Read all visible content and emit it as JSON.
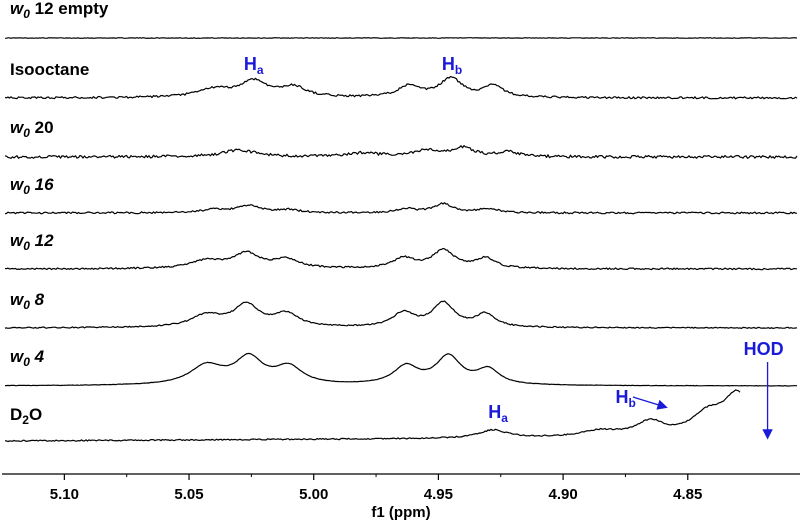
{
  "chart_data": {
    "type": "line",
    "xlabel": "f1 (ppm)",
    "xlim": [
      5.125,
      4.805
    ],
    "x_reversed": true,
    "x_ticks": [
      5.1,
      5.05,
      5.0,
      4.95,
      4.9,
      4.85
    ],
    "x_tick_labels": [
      "5.10",
      "5.05",
      "5.00",
      "4.95",
      "4.90",
      "4.85"
    ],
    "series": [
      {
        "name": "w0 12 empty",
        "label_main": "w",
        "label_sub": "0",
        "label_rest": " 12 empty",
        "label_italic": false,
        "noise": 0.3,
        "peaks": []
      },
      {
        "name": "Isooctane",
        "label_main": "Isooctane",
        "label_sub": "",
        "label_rest": "",
        "label_italic": false,
        "noise": 1.0,
        "peaks": [
          [
            5.04,
            8,
            0.012
          ],
          [
            5.024,
            16,
            0.01
          ],
          [
            5.008,
            10,
            0.009
          ],
          [
            4.962,
            11,
            0.008
          ],
          [
            4.945,
            19,
            0.008
          ],
          [
            4.928,
            12,
            0.007
          ]
        ]
      },
      {
        "name": "w0 20",
        "label_main": "w",
        "label_sub": "0",
        "label_rest": " 20",
        "label_italic": false,
        "noise": 1.4,
        "peaks": [
          [
            5.03,
            7,
            0.012
          ],
          [
            4.98,
            4,
            0.01
          ],
          [
            4.955,
            6,
            0.009
          ],
          [
            4.94,
            9,
            0.008
          ],
          [
            4.922,
            5,
            0.007
          ]
        ]
      },
      {
        "name": "w0 16",
        "label_main": "w",
        "label_sub": "0",
        "label_rest": " 16",
        "label_italic": true,
        "noise": 0.9,
        "peaks": [
          [
            5.04,
            3,
            0.01
          ],
          [
            5.026,
            7,
            0.008
          ],
          [
            5.01,
            3,
            0.008
          ],
          [
            4.963,
            4,
            0.007
          ],
          [
            4.948,
            9,
            0.007
          ],
          [
            4.93,
            4,
            0.007
          ]
        ]
      },
      {
        "name": "w0 12",
        "label_main": "w",
        "label_sub": "0",
        "label_rest": " 12",
        "label_italic": true,
        "noise": 0.8,
        "peaks": [
          [
            5.043,
            8,
            0.011
          ],
          [
            5.027,
            15,
            0.009
          ],
          [
            5.011,
            9,
            0.009
          ],
          [
            4.964,
            10,
            0.008
          ],
          [
            4.948,
            18,
            0.008
          ],
          [
            4.931,
            10,
            0.007
          ]
        ]
      },
      {
        "name": "w0 8",
        "label_main": "w",
        "label_sub": "0",
        "label_rest": " 8",
        "label_italic": true,
        "noise": 0.6,
        "peaks": [
          [
            5.043,
            12,
            0.011
          ],
          [
            5.027,
            22,
            0.009
          ],
          [
            5.011,
            13,
            0.009
          ],
          [
            4.964,
            14,
            0.008
          ],
          [
            4.948,
            24,
            0.008
          ],
          [
            4.931,
            13,
            0.007
          ]
        ]
      },
      {
        "name": "w0 4",
        "label_main": "w",
        "label_sub": "0",
        "label_rest": " 4",
        "label_italic": true,
        "noise": 0.2,
        "peaks": [
          [
            5.043,
            19,
            0.012
          ],
          [
            5.026,
            26,
            0.01
          ],
          [
            5.01,
            17,
            0.01
          ],
          [
            4.963,
            18,
            0.009
          ],
          [
            4.946,
            28,
            0.009
          ],
          [
            4.93,
            15,
            0.008
          ]
        ]
      },
      {
        "name": "D2O",
        "label_main": "D",
        "label_sub": "2",
        "label_rest": "O",
        "label_italic": false,
        "noise": 0.6,
        "d2o": true,
        "end_x": 4.829,
        "peaks": [
          [
            4.928,
            8,
            0.01
          ],
          [
            4.885,
            6,
            0.014
          ],
          [
            4.865,
            14,
            0.01
          ],
          [
            4.842,
            20,
            0.012
          ],
          [
            4.83,
            40,
            0.01
          ]
        ]
      }
    ],
    "annotations": [
      {
        "text": "H",
        "sub": "a",
        "series": "Isooctane"
      },
      {
        "text": "H",
        "sub": "b",
        "series": "Isooctane"
      },
      {
        "text": "H",
        "sub": "a",
        "series": "D2O"
      },
      {
        "text": "H",
        "sub": "b",
        "series": "D2O"
      },
      {
        "text": "HOD",
        "sub": "",
        "series": "D2O"
      }
    ],
    "annotation_color": "#1a1ad8",
    "trace_color": "#000000"
  }
}
